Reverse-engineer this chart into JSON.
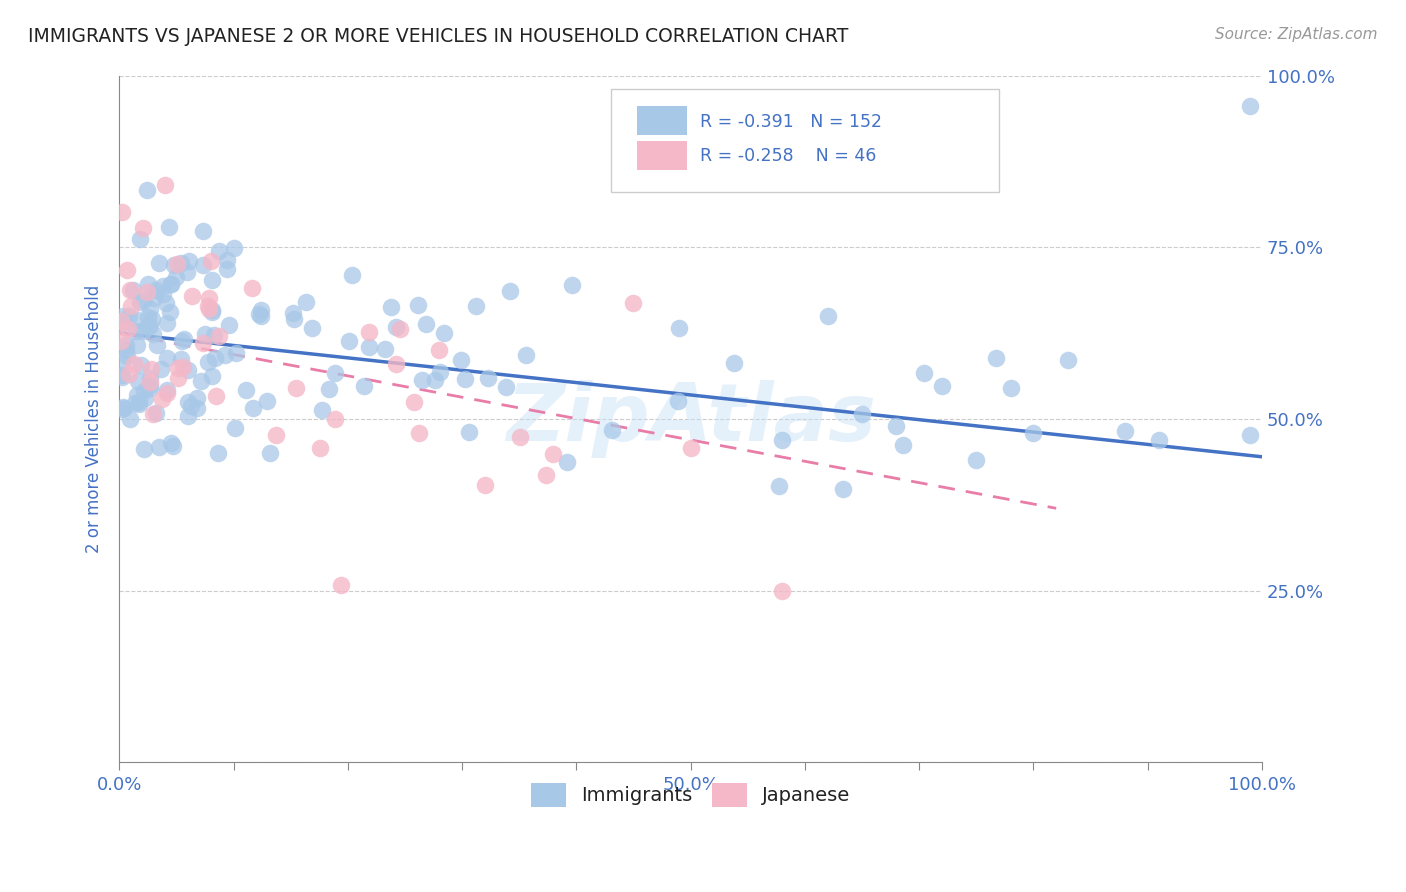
{
  "title": "IMMIGRANTS VS JAPANESE 2 OR MORE VEHICLES IN HOUSEHOLD CORRELATION CHART",
  "source": "Source: ZipAtlas.com",
  "ylabel": "2 or more Vehicles in Household",
  "xlim": [
    0.0,
    1.0
  ],
  "ylim": [
    0.0,
    1.0
  ],
  "immigrants_color": "#a8c8e8",
  "japanese_color": "#f4b8c8",
  "immigrants_line_color": "#4472c4",
  "japanese_line_color": "#e87da8",
  "r_immigrants": -0.391,
  "n_immigrants": 152,
  "r_japanese": -0.258,
  "n_japanese": 46,
  "legend_text_color": "#4472c4",
  "title_color": "#222222",
  "axis_label_color": "#4472c4",
  "grid_color": "#cccccc",
  "watermark": "ZipAtlas",
  "imm_line_x0": 0.0,
  "imm_line_x1": 1.0,
  "imm_line_y0": 0.625,
  "imm_line_y1": 0.445,
  "jap_line_x0": 0.0,
  "jap_line_x1": 0.82,
  "jap_line_y0": 0.625,
  "jap_line_y1": 0.37
}
